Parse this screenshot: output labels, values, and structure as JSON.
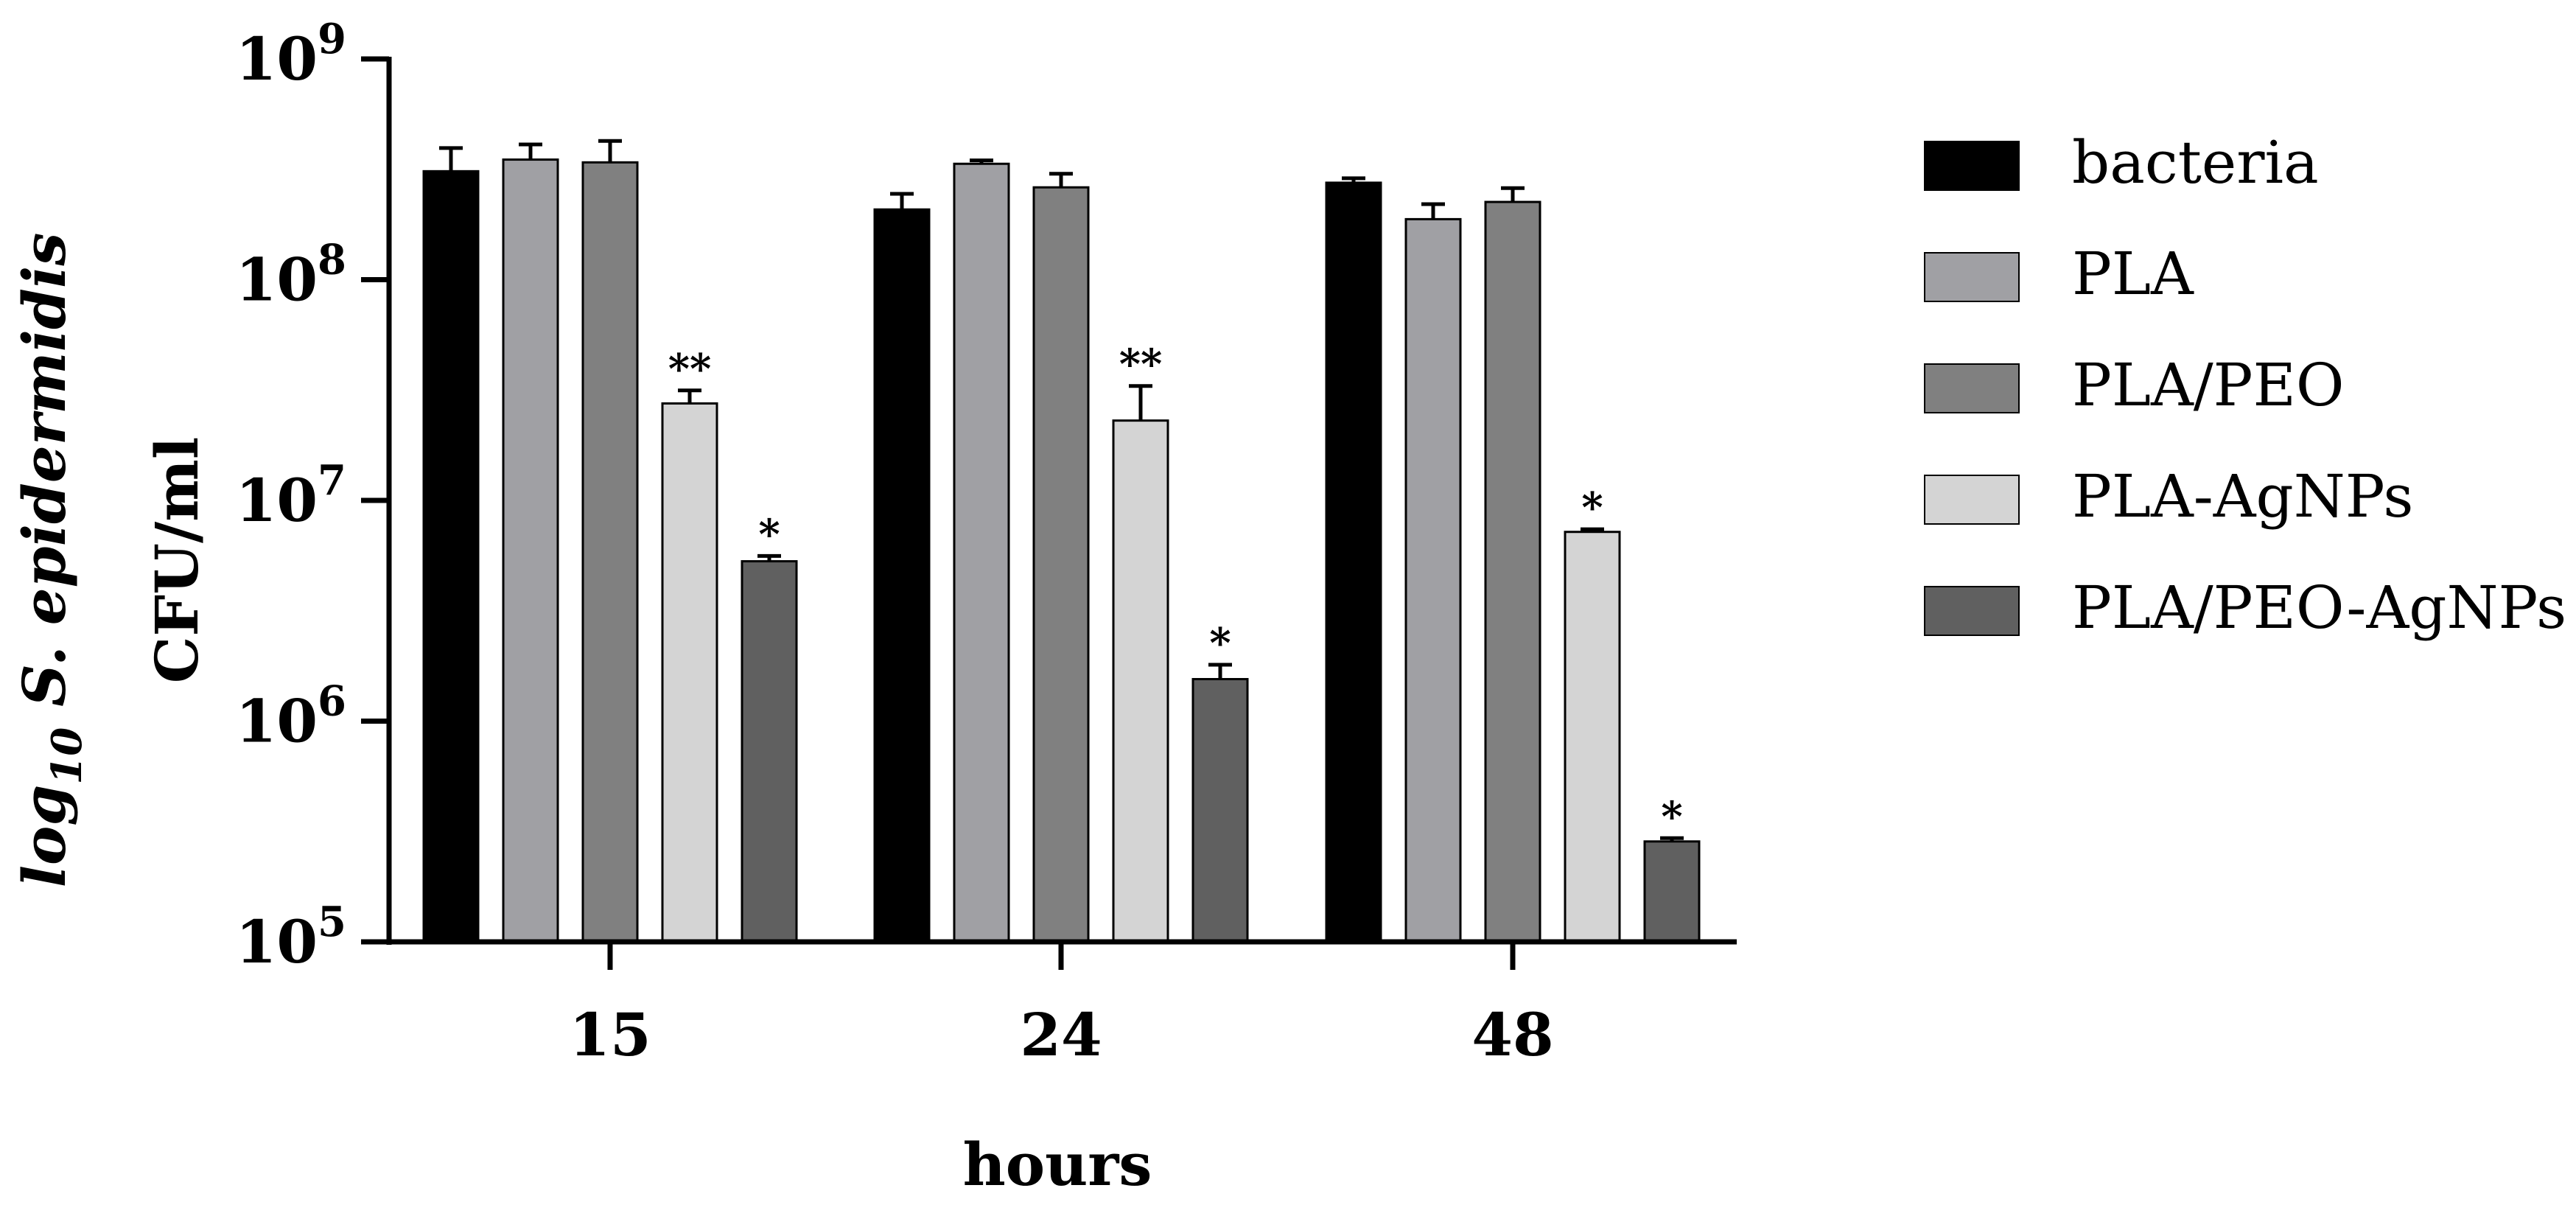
{
  "chart_data": {
    "type": "bar",
    "ylabel_main": "log",
    "ylabel_sub": "10",
    "ylabel_species": " S. epidermidis",
    "ylabel_line2": "CFU/ml",
    "xlabel": "hours",
    "y_scale": "log",
    "ylim": [
      100000,
      1000000000
    ],
    "y_ticks": [
      {
        "base": "10",
        "exp": "5"
      },
      {
        "base": "10",
        "exp": "6"
      },
      {
        "base": "10",
        "exp": "7"
      },
      {
        "base": "10",
        "exp": "8"
      },
      {
        "base": "10",
        "exp": "9"
      }
    ],
    "categories": [
      "15",
      "24",
      "48"
    ],
    "legend_position": "right",
    "grid": false,
    "series": [
      {
        "name": "bacteria",
        "color": "#000000",
        "values": [
          310000000,
          208000000,
          275000000
        ],
        "errors": [
          85000000,
          37000000,
          13000000
        ],
        "annotations": [
          "",
          "",
          ""
        ]
      },
      {
        "name": "PLA",
        "color": "#a0a0a4",
        "values": [
          350000000,
          335000000,
          188000000
        ],
        "errors": [
          60000000,
          12000000,
          32000000
        ],
        "annotations": [
          "",
          "",
          ""
        ]
      },
      {
        "name": "PLA/PEO",
        "color": "#808080",
        "values": [
          340000000,
          262000000,
          225000000
        ],
        "errors": [
          85000000,
          40000000,
          35000000
        ],
        "annotations": [
          "",
          "",
          ""
        ]
      },
      {
        "name": "PLA-AgNPs",
        "color": "#d4d4d4",
        "values": [
          27500000,
          23000000,
          7200000
        ],
        "errors": [
          4000000,
          10000000,
          200000
        ],
        "annotations": [
          "**",
          "**",
          "*"
        ]
      },
      {
        "name": "PLA/PEO-AgNPs",
        "color": "#606060",
        "values": [
          5300000,
          1550000,
          285000
        ],
        "errors": [
          300000,
          250000,
          10000
        ],
        "annotations": [
          "*",
          "*",
          "*"
        ]
      }
    ]
  }
}
